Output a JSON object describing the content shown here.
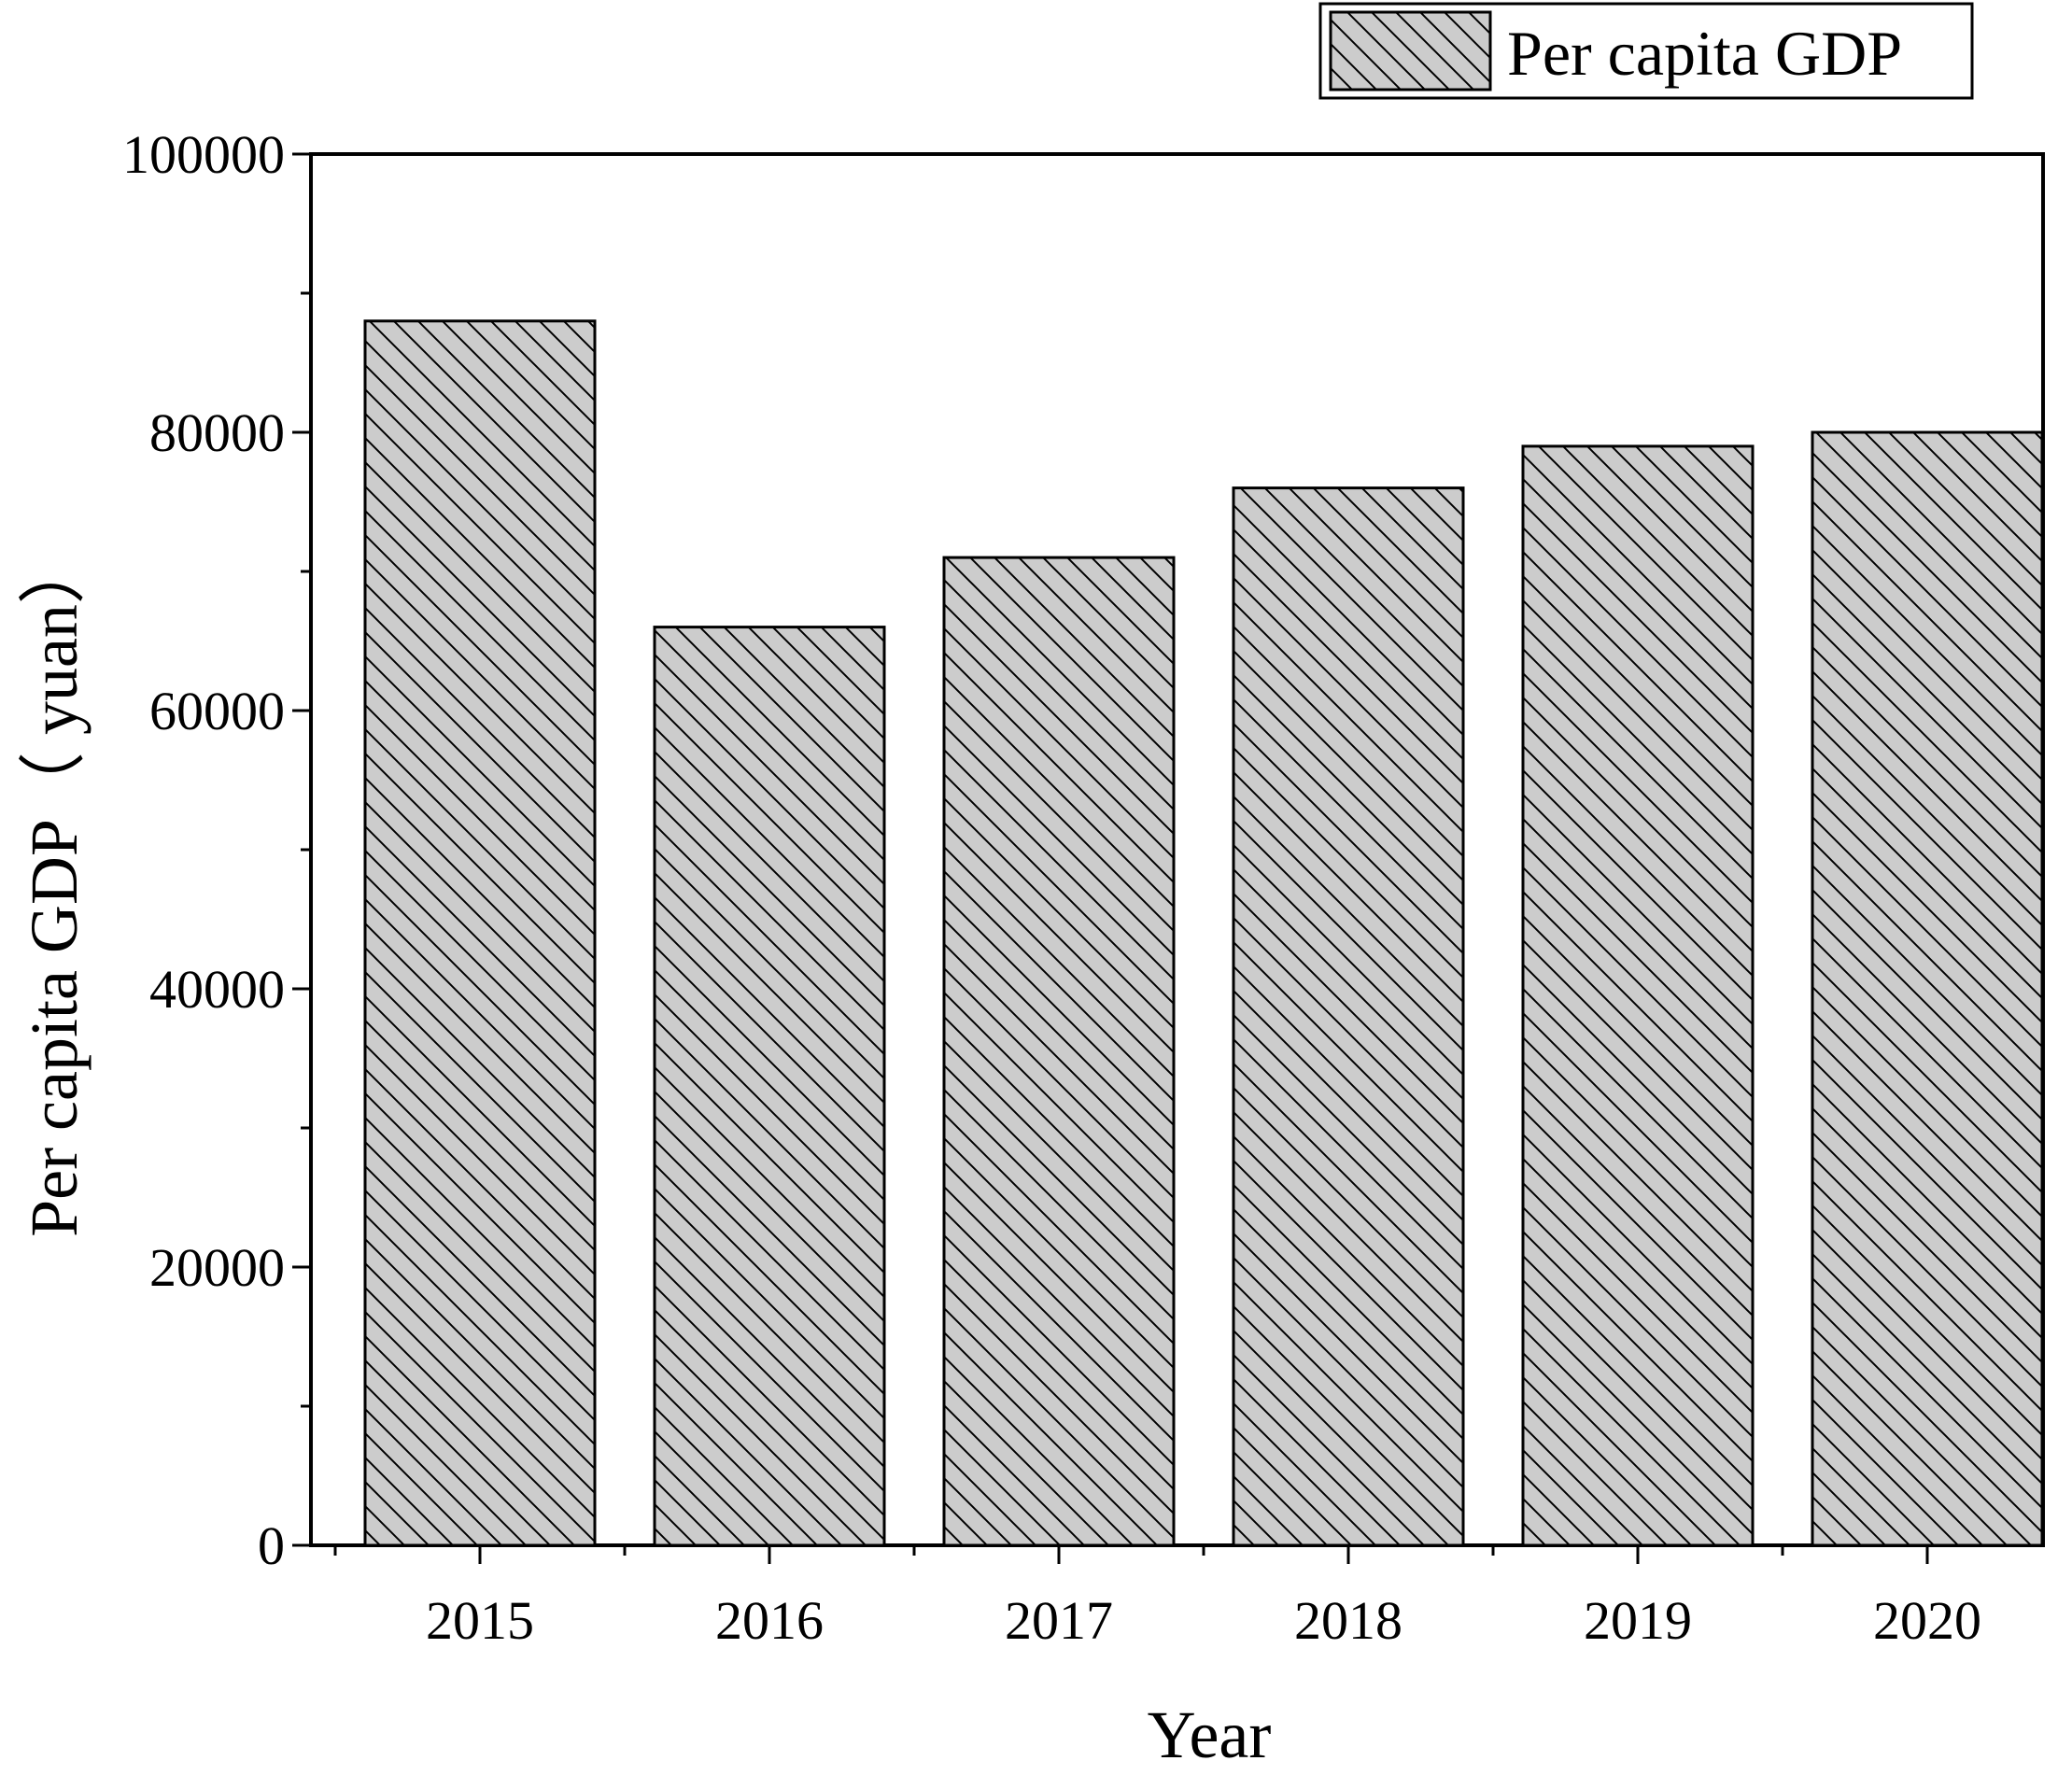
{
  "chart_data": {
    "type": "bar",
    "title": "",
    "xlabel": "Year",
    "ylabel": "Per capita GDP（ yuan）",
    "categories": [
      "2015",
      "2016",
      "2017",
      "2018",
      "2019",
      "2020"
    ],
    "series": [
      {
        "name": "Per capita GDP",
        "values": [
          88000,
          66000,
          71000,
          76000,
          79000,
          80000
        ]
      }
    ],
    "ylim": [
      0,
      100000
    ],
    "yticks": [
      "0",
      "20000",
      "40000",
      "60000",
      "80000",
      "100000"
    ],
    "grid": false,
    "legend_position": "top-right",
    "bar_fill": "#cccccc",
    "bar_hatch": "diagonal",
    "bar_stroke": "#000000"
  }
}
